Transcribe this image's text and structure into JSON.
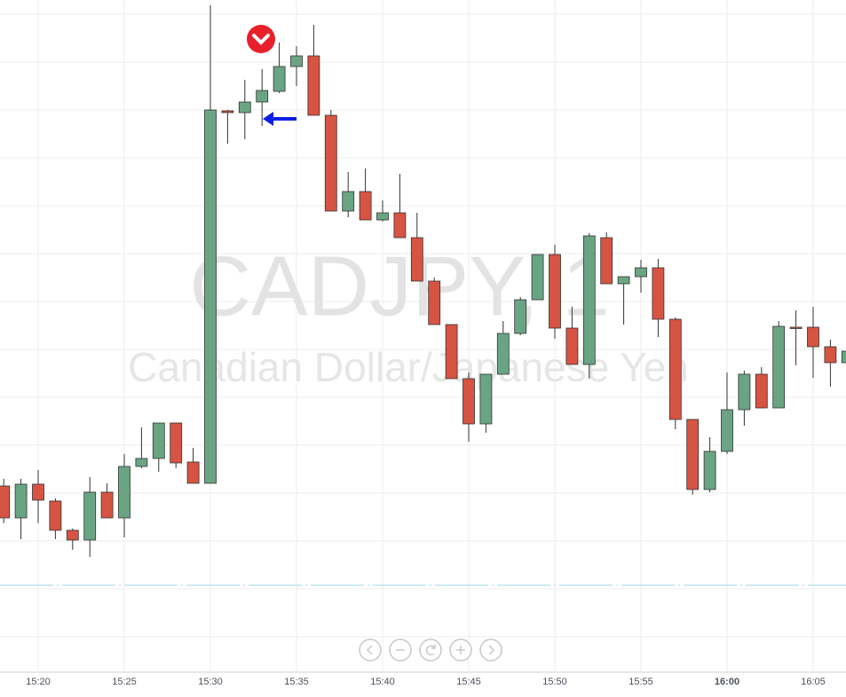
{
  "chart_data": {
    "type": "candlestick",
    "watermark_symbol": "CADJPY, 1",
    "watermark_name": "Canadian Dollar/Japanese Yen",
    "categories": [
      null,
      null,
      "15:20",
      null,
      null,
      null,
      null,
      "15:25",
      null,
      null,
      null,
      null,
      "15:30",
      null,
      null,
      null,
      null,
      "15:35",
      null,
      null,
      null,
      null,
      "15:40",
      null,
      null,
      null,
      null,
      "15:45",
      null,
      null,
      null,
      null,
      "15:50",
      null,
      null,
      null,
      null,
      "15:55",
      null,
      null,
      null,
      null,
      "16:00",
      null,
      null,
      null,
      null,
      "16:05",
      null,
      null
    ],
    "open": [
      252,
      216,
      254,
      235,
      202,
      191,
      245,
      216,
      274,
      283,
      323,
      279,
      255,
      675,
      673,
      685,
      697,
      725,
      737,
      670,
      562,
      584,
      552,
      560,
      532,
      483,
      434,
      373,
      322,
      378,
      424,
      462,
      513,
      430,
      389,
      532,
      480,
      488,
      498,
      440,
      327,
      248,
      291,
      338,
      378,
      340,
      431,
      431,
      409,
      391
    ],
    "high": [
      260,
      260,
      270,
      238,
      204,
      262,
      255,
      288,
      318,
      323,
      323,
      295,
      794,
      676,
      710,
      722,
      752,
      748,
      772,
      676,
      606,
      610,
      574,
      604,
      560,
      487,
      434,
      380,
      378,
      438,
      465,
      513,
      524,
      454,
      537,
      538,
      488,
      507,
      508,
      442,
      327,
      307,
      380,
      382,
      386,
      438,
      450,
      454,
      417,
      410
    ],
    "low": [
      210,
      192,
      210,
      192,
      180,
      172,
      216,
      194,
      272,
      268,
      272,
      255,
      255,
      638,
      643,
      658,
      695,
      703,
      670,
      562,
      555,
      552,
      550,
      532,
      483,
      434,
      373,
      302,
      312,
      378,
      422,
      462,
      418,
      389,
      373,
      480,
      434,
      470,
      420,
      316,
      242,
      245,
      288,
      320,
      340,
      340,
      388,
      374,
      364,
      390
    ],
    "close": [
      216,
      254,
      236,
      202,
      191,
      245,
      216,
      274,
      283,
      323,
      278,
      255,
      676,
      673,
      685,
      698,
      725,
      737,
      670,
      562,
      584,
      552,
      560,
      532,
      483,
      434,
      373,
      322,
      378,
      424,
      462,
      513,
      430,
      389,
      534,
      480,
      488,
      498,
      440,
      327,
      248,
      291,
      338,
      378,
      340,
      432,
      430,
      409,
      391,
      404
    ],
    "ylim": [
      19,
      800
    ],
    "up_color": "#6aa583",
    "down_color": "#d75442",
    "grid": true
  }
}
